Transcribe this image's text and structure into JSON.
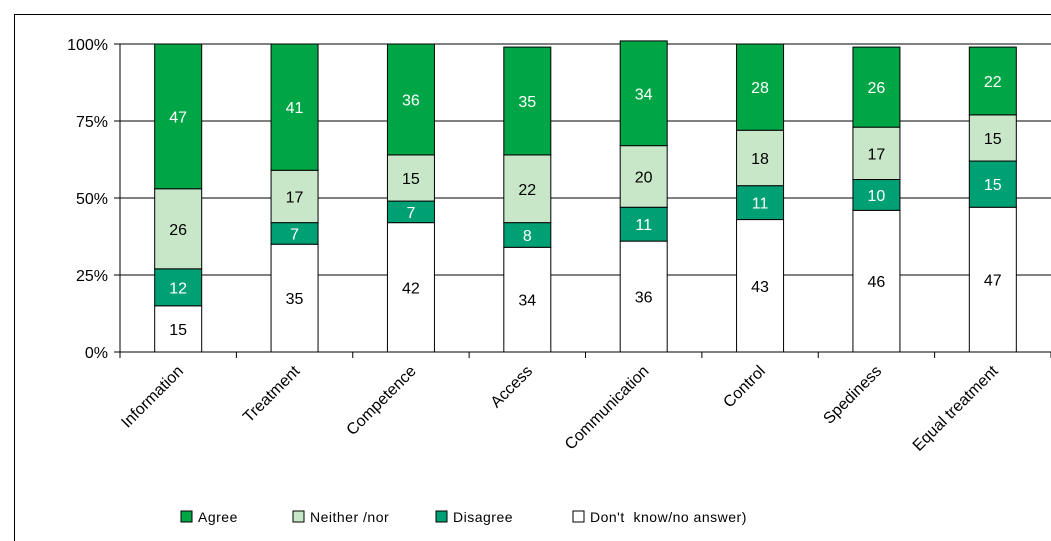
{
  "chart_data": {
    "type": "bar",
    "stacked": true,
    "percent": true,
    "categories": [
      "Information",
      "Treatment",
      "Competence",
      "Access",
      "Communication",
      "Control",
      "Spediness",
      "Equal treatment"
    ],
    "series": [
      {
        "name": "Don't  know/no answer)",
        "color": "#ffffff",
        "label_color": "#000000",
        "values": [
          15,
          35,
          42,
          34,
          36,
          43,
          46,
          47
        ]
      },
      {
        "name": "Disagree",
        "color": "#00a075",
        "label_color": "#ffffff",
        "values": [
          12,
          7,
          7,
          8,
          11,
          11,
          10,
          15
        ]
      },
      {
        "name": "Neither /nor",
        "color": "#c8e6c8",
        "label_color": "#000000",
        "values": [
          26,
          17,
          15,
          22,
          20,
          18,
          17,
          15
        ]
      },
      {
        "name": "Agree",
        "color": "#00a645",
        "label_color": "#ffffff",
        "values": [
          47,
          41,
          36,
          35,
          34,
          28,
          26,
          22
        ]
      }
    ],
    "legend_order": [
      "Agree",
      "Neither /nor",
      "Disagree",
      "Don't  know/no answer)"
    ],
    "yticks": [
      "0%",
      "25%",
      "50%",
      "75%",
      "100%"
    ],
    "ylim": [
      0,
      100
    ],
    "legend_position": "bottom",
    "grid": true
  }
}
